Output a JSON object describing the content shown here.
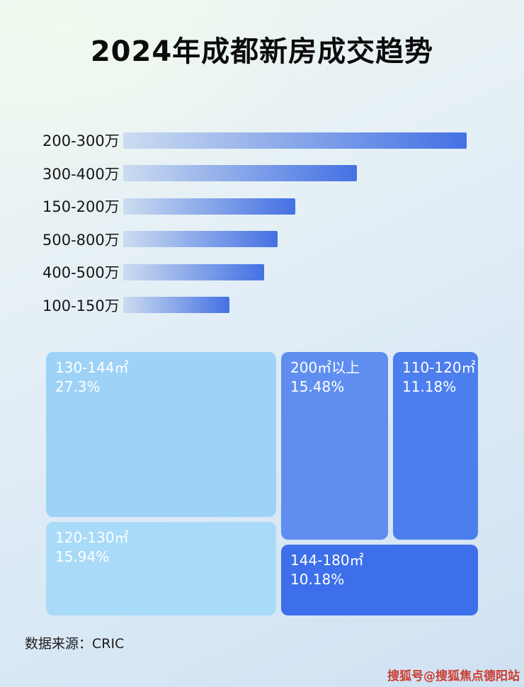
{
  "title": "2024年成都新房成交趋势",
  "chart_data": [
    {
      "type": "bar",
      "orientation": "horizontal",
      "categories": [
        "200-300万",
        "300-400万",
        "150-200万",
        "500-800万",
        "400-500万",
        "100-150万"
      ],
      "values_pct_of_max": [
        100,
        68,
        50,
        45,
        41,
        31
      ],
      "bar_gradient": [
        "#ccdcf0",
        "#4471e3"
      ],
      "axis": "none",
      "legend": "none"
    },
    {
      "type": "treemap",
      "items": [
        {
          "label": "130-144㎡",
          "percent": "27.3%",
          "value": 27.3,
          "color": "#9ed3f7"
        },
        {
          "label": "120-130㎡",
          "percent": "15.94%",
          "value": 15.94,
          "color": "#a9dbf8"
        },
        {
          "label": "200㎡以上",
          "percent": "15.48%",
          "value": 15.48,
          "color": "#5f8ef0"
        },
        {
          "label": "110-120㎡",
          "percent": "11.18%",
          "value": 11.18,
          "color": "#4d7eee"
        },
        {
          "label": "144-180㎡",
          "percent": "10.18%",
          "value": 10.18,
          "color": "#3c6fe9"
        }
      ]
    }
  ],
  "footer": {
    "source_label": "数据来源：CRIC"
  },
  "watermark": {
    "text": "搜狐号@搜狐焦点德阳站",
    "color": "#cc3b2f"
  }
}
